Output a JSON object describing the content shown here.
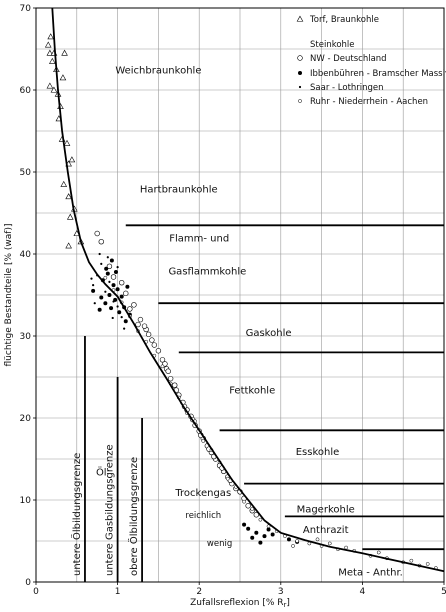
{
  "chart_data": {
    "type": "scatter",
    "xlabel": "Zufallsreflexion [% R",
    "xlabel_subscript": "r",
    "xlabel_suffix": "]",
    "ylabel": "flüchtige Bestandteile [% (waf)]",
    "xlim": [
      0,
      5
    ],
    "ylim": [
      0,
      70
    ],
    "x_ticks": [
      "0",
      "1",
      "2",
      "3",
      "4",
      "5"
    ],
    "y_ticks": [
      "0",
      "10",
      "20",
      "30",
      "40",
      "50",
      "60",
      "70"
    ],
    "grid": true,
    "legend": {
      "position": "top-right",
      "group_title": "Steinkohle",
      "entries": [
        {
          "name": "Torf, Braunkohle",
          "marker": "triangle"
        },
        {
          "name": "NW - Deutschland",
          "marker": "open-circle"
        },
        {
          "name": "Ibbenbühren - Bramscher Massiv",
          "marker": "filled-circle"
        },
        {
          "name": "Saar - Lothringen",
          "marker": "small-dot"
        },
        {
          "name": "Ruhr - Niederrhein - Aachen",
          "marker": "small-open-circle"
        }
      ]
    },
    "regions": [
      {
        "label": "Weichbraunkohle",
        "x": 1.5,
        "y": 62
      },
      {
        "label": "Hartbraunkohle",
        "x": 1.75,
        "y": 47.5
      },
      {
        "label": "Flamm- und",
        "x": 2.0,
        "y": 41.5
      },
      {
        "label": "Gasflammkohle",
        "x": 2.1,
        "y": 37.5
      },
      {
        "label": "Gaskohle",
        "x": 2.85,
        "y": 30
      },
      {
        "label": "Fettkohle",
        "x": 2.65,
        "y": 23
      },
      {
        "label": "Esskohle",
        "x": 3.45,
        "y": 15.5
      },
      {
        "label": "Magerkohle",
        "x": 3.55,
        "y": 8.5
      },
      {
        "label": "Anthrazit",
        "x": 3.55,
        "y": 6.0
      },
      {
        "label": "Meta - Anthr.",
        "x": 4.1,
        "y": 0.8
      }
    ],
    "boundaries": [
      {
        "y": 43.5,
        "x_start": 1.1,
        "x_end": 5
      },
      {
        "y": 34.0,
        "x_start": 1.5,
        "x_end": 5
      },
      {
        "y": 28.0,
        "x_start": 1.75,
        "x_end": 5
      },
      {
        "y": 18.5,
        "x_start": 2.25,
        "x_end": 5
      },
      {
        "y": 12.0,
        "x_start": 2.55,
        "x_end": 5
      },
      {
        "y": 8.0,
        "x_start": 3.05,
        "x_end": 5
      },
      {
        "y": 4.0,
        "x_start": 4.0,
        "x_end": 5
      }
    ],
    "thresholds": [
      {
        "label": "untere Ölbildungsgrenze",
        "x": 0.6,
        "y_top": 30
      },
      {
        "label": "untere Gasbildungsgrenze",
        "x": 1.0,
        "y_top": 25
      },
      {
        "label": "obere Ölbildungsgrenze",
        "x": 1.3,
        "y_top": 20
      }
    ],
    "annotations": [
      {
        "label": "Öl",
        "x": 0.8,
        "y": 13
      },
      {
        "label": "Trockengas",
        "x": 2.05,
        "y": 10.5
      },
      {
        "label": "reichlich",
        "x": 2.05,
        "y": 7.8
      },
      {
        "label": "wenig",
        "x": 2.25,
        "y": 4.4
      }
    ],
    "trend_curve": [
      [
        0.2,
        70
      ],
      [
        0.23,
        65
      ],
      [
        0.27,
        60
      ],
      [
        0.32,
        55
      ],
      [
        0.39,
        50
      ],
      [
        0.46,
        45.5
      ],
      [
        0.55,
        41.5
      ],
      [
        0.65,
        39
      ],
      [
        0.75,
        37.5
      ],
      [
        0.85,
        36.3
      ],
      [
        1.0,
        34.8
      ],
      [
        1.2,
        31.5
      ],
      [
        1.4,
        28
      ],
      [
        1.6,
        24.8
      ],
      [
        1.8,
        21.5
      ],
      [
        2.0,
        18.5
      ],
      [
        2.2,
        15.5
      ],
      [
        2.4,
        12.5
      ],
      [
        2.6,
        10
      ],
      [
        2.8,
        7.5
      ],
      [
        3.0,
        6.0
      ],
      [
        3.3,
        5.1
      ],
      [
        3.6,
        4.3
      ],
      [
        4.0,
        3.5
      ],
      [
        4.5,
        2.4
      ],
      [
        5.0,
        1.3
      ]
    ],
    "series": [
      {
        "name": "Torf, Braunkohle",
        "marker": "triangle",
        "points": [
          [
            0.15,
            65.5
          ],
          [
            0.17,
            64.5
          ],
          [
            0.18,
            66.5
          ],
          [
            0.2,
            63.5
          ],
          [
            0.22,
            64.5
          ],
          [
            0.25,
            62.5
          ],
          [
            0.17,
            60.5
          ],
          [
            0.22,
            60.0
          ],
          [
            0.27,
            59.5
          ],
          [
            0.33,
            61.5
          ],
          [
            0.35,
            64.5
          ],
          [
            0.28,
            56.5
          ],
          [
            0.3,
            58.0
          ],
          [
            0.32,
            54.0
          ],
          [
            0.38,
            53.5
          ],
          [
            0.4,
            51.0
          ],
          [
            0.44,
            51.5
          ],
          [
            0.34,
            48.5
          ],
          [
            0.4,
            47.0
          ],
          [
            0.47,
            45.5
          ],
          [
            0.42,
            44.5
          ],
          [
            0.5,
            42.5
          ],
          [
            0.4,
            41.0
          ],
          [
            0.55,
            41.5
          ]
        ]
      },
      {
        "name": "NW - Deutschland",
        "marker": "open-circle",
        "points": [
          [
            0.75,
            42.5
          ],
          [
            0.8,
            41.5
          ],
          [
            0.9,
            38.5
          ],
          [
            0.95,
            37.2
          ],
          [
            1.05,
            36.5
          ],
          [
            1.1,
            35.2
          ],
          [
            1.2,
            33.8
          ],
          [
            1.28,
            32.0
          ],
          [
            1.35,
            30.8
          ],
          [
            1.42,
            29.5
          ],
          [
            1.5,
            28.2
          ],
          [
            1.55,
            27.1
          ],
          [
            1.6,
            26.0
          ],
          [
            1.65,
            24.8
          ],
          [
            1.7,
            24.0
          ],
          [
            1.75,
            22.8
          ],
          [
            1.8,
            21.9
          ],
          [
            1.85,
            21.0
          ],
          [
            1.9,
            20.2
          ],
          [
            1.95,
            19.1
          ],
          [
            2.0,
            18.4
          ],
          [
            2.05,
            17.5
          ],
          [
            2.1,
            16.6
          ],
          [
            2.15,
            15.8
          ],
          [
            2.2,
            15.0
          ],
          [
            2.25,
            14.2
          ],
          [
            2.3,
            13.5
          ],
          [
            2.35,
            12.8
          ],
          [
            2.4,
            12.0
          ],
          [
            2.5,
            11.0
          ],
          [
            2.55,
            10.2
          ],
          [
            2.6,
            9.3
          ],
          [
            2.7,
            8.2
          ],
          [
            1.25,
            31.4
          ],
          [
            1.45,
            28.9
          ],
          [
            1.62,
            25.7
          ],
          [
            1.82,
            21.4
          ],
          [
            2.02,
            17.9
          ],
          [
            2.18,
            15.3
          ],
          [
            2.38,
            12.4
          ],
          [
            1.38,
            30.2
          ],
          [
            1.58,
            26.6
          ],
          [
            1.72,
            23.4
          ],
          [
            1.92,
            19.8
          ],
          [
            2.12,
            16.2
          ],
          [
            2.28,
            13.9
          ],
          [
            2.45,
            11.4
          ],
          [
            2.65,
            8.7
          ],
          [
            1.15,
            33.3
          ],
          [
            1.33,
            31.2
          ]
        ]
      },
      {
        "name": "Ibbenbühren - Bramscher Massiv",
        "marker": "filled-circle",
        "points": [
          [
            0.7,
            35.5
          ],
          [
            0.78,
            33.2
          ],
          [
            0.82,
            36.8
          ],
          [
            0.85,
            34.0
          ],
          [
            0.88,
            37.6
          ],
          [
            0.9,
            35.0
          ],
          [
            0.92,
            33.4
          ],
          [
            0.95,
            36.2
          ],
          [
            0.97,
            34.4
          ],
          [
            1.0,
            35.7
          ],
          [
            1.02,
            32.9
          ],
          [
            1.05,
            34.8
          ],
          [
            1.08,
            33.5
          ],
          [
            1.1,
            31.8
          ],
          [
            0.86,
            38.2
          ],
          [
            0.93,
            39.2
          ],
          [
            0.98,
            37.8
          ],
          [
            0.8,
            34.7
          ],
          [
            1.12,
            36.0
          ],
          [
            1.15,
            32.6
          ],
          [
            2.6,
            6.5
          ],
          [
            2.7,
            6.0
          ],
          [
            2.8,
            5.6
          ],
          [
            2.9,
            5.8
          ],
          [
            2.55,
            7.0
          ],
          [
            2.75,
            4.8
          ],
          [
            3.1,
            5.2
          ],
          [
            3.2,
            4.9
          ],
          [
            2.65,
            5.4
          ],
          [
            2.85,
            6.4
          ]
        ]
      },
      {
        "name": "Saar - Lothringen",
        "marker": "small-dot",
        "points": [
          [
            0.7,
            36.2
          ],
          [
            0.75,
            37.4
          ],
          [
            0.8,
            38.8
          ],
          [
            0.85,
            35.4
          ],
          [
            0.9,
            36.6
          ],
          [
            0.95,
            34.2
          ],
          [
            1.0,
            33.6
          ],
          [
            1.05,
            32.3
          ],
          [
            0.78,
            40.0
          ],
          [
            0.88,
            39.6
          ],
          [
            1.0,
            38.4
          ],
          [
            0.72,
            34.0
          ],
          [
            0.94,
            32.2
          ],
          [
            1.08,
            30.9
          ],
          [
            0.68,
            37.0
          ]
        ]
      },
      {
        "name": "Ruhr - Niederrhein - Aachen",
        "marker": "small-open-circle",
        "points": [
          [
            0.85,
            37.1
          ],
          [
            0.95,
            35.6
          ],
          [
            1.05,
            34.1
          ],
          [
            1.15,
            32.4
          ],
          [
            1.25,
            30.6
          ],
          [
            1.35,
            29.3
          ],
          [
            1.45,
            27.6
          ],
          [
            1.55,
            26.3
          ],
          [
            1.65,
            24.2
          ],
          [
            1.75,
            22.5
          ],
          [
            1.85,
            20.6
          ],
          [
            1.95,
            19.6
          ],
          [
            2.05,
            17.2
          ],
          [
            2.15,
            16.1
          ],
          [
            2.25,
            14.6
          ],
          [
            2.35,
            12.6
          ],
          [
            2.45,
            11.6
          ],
          [
            2.55,
            9.8
          ],
          [
            2.65,
            8.9
          ],
          [
            2.75,
            7.6
          ],
          [
            2.85,
            6.8
          ],
          [
            2.95,
            6.2
          ],
          [
            3.05,
            5.6
          ],
          [
            3.2,
            5.0
          ],
          [
            3.35,
            4.7
          ],
          [
            3.5,
            4.4
          ],
          [
            3.7,
            4.0
          ],
          [
            3.9,
            3.8
          ],
          [
            4.1,
            3.2
          ],
          [
            4.3,
            2.9
          ],
          [
            4.5,
            2.4
          ],
          [
            4.7,
            2.0
          ],
          [
            4.9,
            1.7
          ],
          [
            3.6,
            4.7
          ],
          [
            3.8,
            4.2
          ],
          [
            4.2,
            3.6
          ],
          [
            4.6,
            2.6
          ],
          [
            3.15,
            4.4
          ],
          [
            3.45,
            5.2
          ],
          [
            4.8,
            2.2
          ]
        ]
      }
    ]
  }
}
